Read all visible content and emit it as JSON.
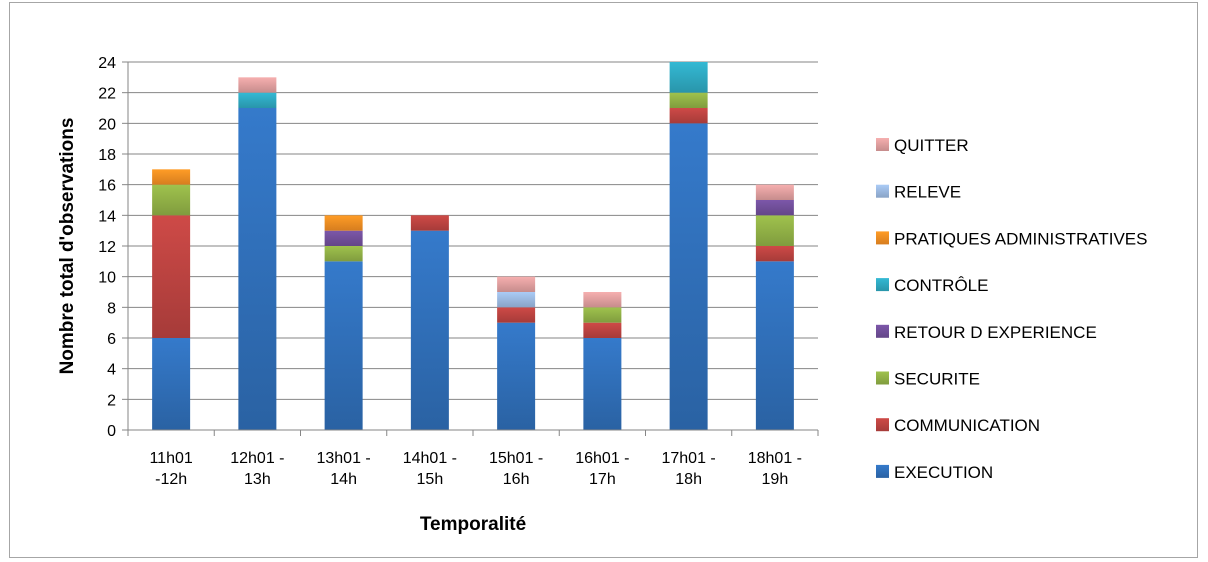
{
  "chart_data": {
    "type": "bar",
    "stacked": true,
    "categories": [
      [
        "11h01",
        "-12h"
      ],
      [
        "12h01 -",
        "13h"
      ],
      [
        "13h01 -",
        "14h"
      ],
      [
        "14h01 -",
        "15h"
      ],
      [
        "15h01 -",
        "16h"
      ],
      [
        "16h01 -",
        "17h"
      ],
      [
        "17h01 -",
        "18h"
      ],
      [
        "18h01 -",
        "19h"
      ]
    ],
    "series": [
      {
        "name": "EXECUTION",
        "color": "#2f6db5",
        "values": [
          6,
          21,
          11,
          13,
          7,
          6,
          20,
          11
        ]
      },
      {
        "name": "COMMUNICATION",
        "color": "#b8423f",
        "values": [
          8,
          0,
          0,
          1,
          1,
          1,
          1,
          1
        ]
      },
      {
        "name": "SECURITE",
        "color": "#8ead45",
        "values": [
          2,
          0,
          1,
          0,
          0,
          1,
          1,
          2
        ]
      },
      {
        "name": "RETOUR D EXPERIENCE",
        "color": "#6f4e97",
        "values": [
          0,
          0,
          1,
          0,
          0,
          0,
          0,
          1
        ]
      },
      {
        "name": "CONTRÔLE",
        "color": "#2ea5bd",
        "values": [
          0,
          1,
          0,
          0,
          0,
          0,
          2,
          0
        ]
      },
      {
        "name": "PRATIQUES ADMINISTRATIVES",
        "color": "#ee8b22",
        "values": [
          1,
          0,
          1,
          0,
          0,
          0,
          0,
          0
        ]
      },
      {
        "name": "RELEVE",
        "color": "#98b5dc",
        "values": [
          0,
          0,
          0,
          0,
          1,
          0,
          0,
          0
        ]
      },
      {
        "name": "QUITTER",
        "color": "#dc9c9c",
        "values": [
          0,
          1,
          0,
          0,
          1,
          1,
          0,
          1
        ]
      }
    ],
    "xlabel": "Temporalité",
    "ylabel": "Nombre total d'observations",
    "ylim": [
      0,
      24
    ],
    "yticks": [
      0,
      2,
      4,
      6,
      8,
      10,
      12,
      14,
      16,
      18,
      20,
      22,
      24
    ],
    "grid": true,
    "legend_position": "right",
    "legend_order": [
      "QUITTER",
      "RELEVE",
      "PRATIQUES ADMINISTRATIVES",
      "CONTRÔLE",
      "RETOUR D EXPERIENCE",
      "SECURITE",
      "COMMUNICATION",
      "EXECUTION"
    ]
  }
}
